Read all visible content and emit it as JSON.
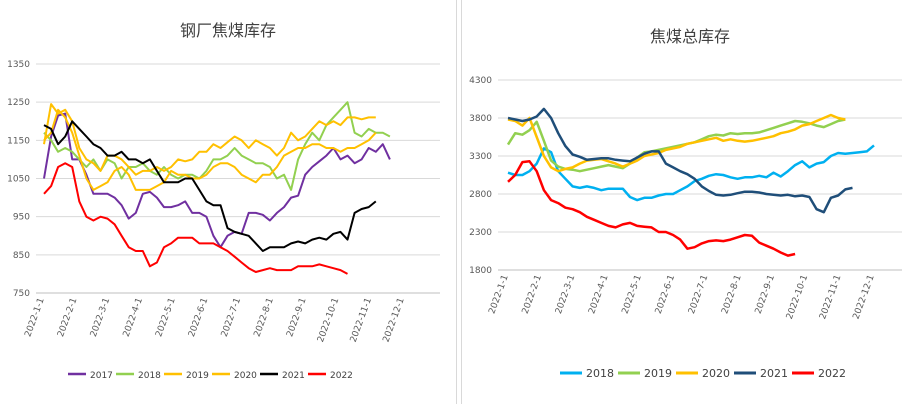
{
  "chart_data": [
    {
      "type": "line",
      "title": "钢厂焦煤库存",
      "ylim": [
        750,
        1350
      ],
      "yticks": [
        750,
        850,
        950,
        1050,
        1150,
        1250,
        1350
      ],
      "grid": true,
      "legend_position": "bottom",
      "x_tick_labels": [
        "2022-1-1",
        "2022-2-1",
        "2022-3-1",
        "2022-4-1",
        "2022-5-1",
        "2022-6-1",
        "2022-7-1",
        "2022-8-1",
        "2022-9-1",
        "2022-10-1",
        "2022-11-1",
        "2022-12-1"
      ],
      "series": [
        {
          "name": "2017",
          "color": "#7030a0",
          "values": [
            1050,
            1160,
            1215,
            1220,
            1100,
            1100,
            1060,
            1010,
            1010,
            1010,
            1000,
            980,
            945,
            960,
            1010,
            1015,
            1000,
            975,
            975,
            980,
            990,
            960,
            960,
            950,
            900,
            870,
            900,
            910,
            905,
            960,
            960,
            955,
            940,
            960,
            975,
            1000,
            1005,
            1060,
            1080,
            1095,
            1110,
            1130,
            1100,
            1110,
            1090,
            1100,
            1130,
            1120,
            1140,
            1100
          ]
        },
        {
          "name": "2018",
          "color": "#92d050",
          "values": [
            1170,
            1150,
            1120,
            1130,
            1120,
            1100,
            1080,
            1100,
            1070,
            1100,
            1090,
            1050,
            1080,
            1080,
            1090,
            1070,
            1060,
            1080,
            1060,
            1050,
            1060,
            1060,
            1050,
            1070,
            1100,
            1100,
            1110,
            1130,
            1110,
            1100,
            1090,
            1090,
            1080,
            1050,
            1060,
            1020,
            1100,
            1140,
            1170,
            1150,
            1190,
            1210,
            1230,
            1250,
            1170,
            1160,
            1180,
            1170,
            1170,
            1160
          ]
        },
        {
          "name": "2019",
          "color": "#ffc000",
          "values": [
            1140,
            1245,
            1220,
            1230,
            1200,
            1130,
            1100,
            1090,
            1070,
            1110,
            1110,
            1100,
            1080,
            1060,
            1070,
            1070,
            1080,
            1070,
            1080,
            1100,
            1095,
            1100,
            1120,
            1120,
            1140,
            1130,
            1145,
            1160,
            1150,
            1130,
            1150,
            1140,
            1130,
            1110,
            1130,
            1170,
            1150,
            1160,
            1180,
            1200,
            1190,
            1200,
            1190,
            1210,
            1210,
            1205,
            1210,
            1210
          ]
        },
        {
          "name": "2020",
          "color": "#ffc000",
          "values": [
            1150,
            1170,
            1230,
            1210,
            1170,
            1110,
            1050,
            1020,
            1030,
            1040,
            1070,
            1080,
            1060,
            1020,
            1020,
            1020,
            1030,
            1040,
            1070,
            1060,
            1060,
            1050,
            1050,
            1060,
            1080,
            1090,
            1090,
            1080,
            1060,
            1050,
            1040,
            1060,
            1060,
            1080,
            1110,
            1120,
            1130,
            1130,
            1140,
            1140,
            1130,
            1130,
            1120,
            1130,
            1130,
            1140,
            1150,
            1170
          ]
        },
        {
          "name": "2021",
          "color": "#000000",
          "values": [
            1190,
            1180,
            1140,
            1160,
            1200,
            1180,
            1160,
            1140,
            1130,
            1110,
            1110,
            1120,
            1100,
            1100,
            1090,
            1100,
            1070,
            1040,
            1040,
            1040,
            1050,
            1050,
            1020,
            990,
            980,
            980,
            920,
            910,
            905,
            900,
            880,
            860,
            870,
            870,
            870,
            880,
            885,
            880,
            890,
            895,
            890,
            905,
            910,
            890,
            960,
            970,
            975,
            990
          ]
        },
        {
          "name": "2022",
          "color": "#ff0000",
          "values": [
            1010,
            1030,
            1080,
            1090,
            1080,
            990,
            950,
            940,
            950,
            945,
            930,
            900,
            870,
            860,
            860,
            820,
            830,
            870,
            880,
            895,
            895,
            895,
            880,
            880,
            880,
            870,
            860,
            845,
            830,
            815,
            805,
            810,
            815,
            810,
            810,
            810,
            820,
            820,
            820,
            825,
            820,
            815,
            810,
            800
          ]
        }
      ]
    },
    {
      "type": "line",
      "title": "焦煤总库存",
      "ylim": [
        1800,
        4300
      ],
      "yticks": [
        1800,
        2300,
        2800,
        3300,
        3800,
        4300
      ],
      "grid": true,
      "legend_position": "bottom",
      "x_tick_labels": [
        "2022-1-1",
        "2022-2-1",
        "2022-3-1",
        "2022-4-1",
        "2022-5-1",
        "2022-6-1",
        "2022-7-1",
        "2022-8-1",
        "2022-9-1",
        "2022-10-1",
        "2022-11-1",
        "2022-12-1"
      ],
      "series": [
        {
          "name": "2018",
          "color": "#00b0f0",
          "values": [
            3080,
            3050,
            3050,
            3100,
            3200,
            3400,
            3350,
            3100,
            3000,
            2900,
            2880,
            2900,
            2880,
            2850,
            2870,
            2870,
            2870,
            2760,
            2720,
            2750,
            2750,
            2780,
            2800,
            2800,
            2850,
            2900,
            2970,
            3000,
            3040,
            3060,
            3050,
            3020,
            3000,
            3020,
            3020,
            3040,
            3020,
            3080,
            3030,
            3100,
            3180,
            3230,
            3150,
            3200,
            3220,
            3300,
            3340,
            3330,
            3340,
            3350,
            3360,
            3440
          ]
        },
        {
          "name": "2019",
          "color": "#92d050",
          "values": [
            3450,
            3600,
            3580,
            3640,
            3750,
            3500,
            3240,
            3160,
            3130,
            3120,
            3100,
            3120,
            3140,
            3160,
            3180,
            3160,
            3140,
            3200,
            3280,
            3350,
            3360,
            3380,
            3400,
            3420,
            3440,
            3460,
            3480,
            3520,
            3560,
            3580,
            3570,
            3600,
            3590,
            3600,
            3600,
            3610,
            3640,
            3670,
            3700,
            3730,
            3760,
            3750,
            3730,
            3700,
            3680,
            3720,
            3760,
            3780
          ]
        },
        {
          "name": "2020",
          "color": "#ffc000",
          "values": [
            3780,
            3760,
            3700,
            3800,
            3550,
            3300,
            3150,
            3100,
            3130,
            3150,
            3200,
            3240,
            3250,
            3260,
            3230,
            3200,
            3160,
            3200,
            3240,
            3300,
            3320,
            3340,
            3380,
            3400,
            3420,
            3460,
            3480,
            3500,
            3520,
            3540,
            3500,
            3520,
            3500,
            3490,
            3500,
            3520,
            3540,
            3560,
            3600,
            3620,
            3650,
            3700,
            3720,
            3760,
            3800,
            3840,
            3800,
            3780
          ]
        },
        {
          "name": "2021",
          "color": "#1f4e79",
          "values": [
            3800,
            3780,
            3760,
            3780,
            3820,
            3920,
            3800,
            3600,
            3430,
            3320,
            3290,
            3250,
            3260,
            3270,
            3270,
            3250,
            3240,
            3230,
            3280,
            3330,
            3360,
            3360,
            3200,
            3150,
            3100,
            3060,
            3000,
            2900,
            2840,
            2790,
            2780,
            2790,
            2810,
            2830,
            2830,
            2820,
            2800,
            2790,
            2780,
            2790,
            2770,
            2780,
            2760,
            2600,
            2560,
            2750,
            2780,
            2860,
            2880
          ]
        },
        {
          "name": "2022",
          "color": "#ff0000",
          "values": [
            2960,
            3050,
            3220,
            3230,
            3100,
            2850,
            2720,
            2680,
            2620,
            2600,
            2560,
            2500,
            2460,
            2420,
            2380,
            2360,
            2400,
            2420,
            2380,
            2370,
            2360,
            2300,
            2300,
            2260,
            2200,
            2080,
            2100,
            2150,
            2180,
            2190,
            2180,
            2200,
            2230,
            2260,
            2250,
            2160,
            2120,
            2080,
            2030,
            1990,
            2010
          ]
        }
      ]
    }
  ]
}
